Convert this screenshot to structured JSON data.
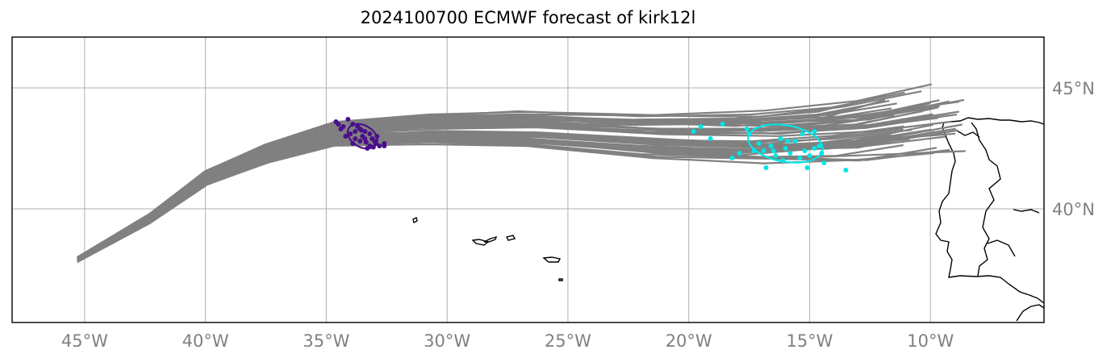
{
  "title": "2024100700 ECMWF forecast of kirk12l",
  "axes": {
    "lon_ticks": [
      {
        "lon": -45,
        "label": "45°W"
      },
      {
        "lon": -40,
        "label": "40°W"
      },
      {
        "lon": -35,
        "label": "35°W"
      },
      {
        "lon": -30,
        "label": "30°W"
      },
      {
        "lon": -25,
        "label": "25°W"
      },
      {
        "lon": -20,
        "label": "20°W"
      },
      {
        "lon": -15,
        "label": "15°W"
      },
      {
        "lon": -10,
        "label": "10°W"
      }
    ],
    "lat_ticks": [
      {
        "lat": 45,
        "label": "45°N"
      },
      {
        "lat": 40,
        "label": "40°N"
      }
    ],
    "lon_range": [
      -48,
      -5.3
    ],
    "lat_range": [
      35.3,
      47.1
    ],
    "grid": true
  },
  "colors": {
    "tracks": "#808080",
    "early_cluster": "#4b0f8c",
    "late_cluster": "#00e5e5",
    "coast": "#000000",
    "grid": "#b0b0b0"
  },
  "chart_data": {
    "type": "map",
    "track_bundle": {
      "start": [
        -45.3,
        37.9
      ],
      "anchors": [
        [
          -45.3,
          37.9
        ],
        [
          -42.3,
          39.6
        ],
        [
          -40.0,
          41.3
        ],
        [
          -37.5,
          42.3
        ],
        [
          -34.8,
          43.1
        ],
        [
          -31.0,
          43.3
        ],
        [
          -27.0,
          43.3
        ],
        [
          -22.0,
          43.0
        ],
        [
          -17.5,
          42.9
        ],
        [
          -14.0,
          43.1
        ],
        [
          -11.0,
          43.6
        ]
      ],
      "count": 50
    },
    "early_cluster": {
      "center": [
        -33.5,
        43.0
      ],
      "ellipse_radii_deg": [
        1.1,
        0.45
      ],
      "ellipse_rotation_deg": 30,
      "points": [
        [
          -34.6,
          43.6
        ],
        [
          -34.3,
          43.4
        ],
        [
          -34.1,
          43.7
        ],
        [
          -33.9,
          43.5
        ],
        [
          -33.8,
          43.2
        ],
        [
          -33.6,
          43.3
        ],
        [
          -33.5,
          43.0
        ],
        [
          -33.4,
          42.9
        ],
        [
          -33.2,
          43.1
        ],
        [
          -33.0,
          42.8
        ],
        [
          -32.8,
          42.6
        ],
        [
          -32.6,
          42.7
        ],
        [
          -33.3,
          42.5
        ],
        [
          -33.9,
          42.7
        ],
        [
          -34.0,
          43.1
        ],
        [
          -33.7,
          43.4
        ],
        [
          -33.4,
          43.2
        ],
        [
          -33.1,
          42.9
        ],
        [
          -32.9,
          43.0
        ],
        [
          -32.6,
          42.6
        ],
        [
          -33.6,
          42.8
        ],
        [
          -33.8,
          42.9
        ],
        [
          -34.4,
          43.3
        ],
        [
          -33.2,
          42.6
        ],
        [
          -32.95,
          42.7
        ],
        [
          -33.55,
          43.25
        ],
        [
          -34.2,
          43.0
        ],
        [
          -33.35,
          42.75
        ],
        [
          -33.05,
          42.55
        ],
        [
          -34.5,
          43.5
        ]
      ]
    },
    "late_cluster": {
      "center": [
        -16.0,
        42.7
      ],
      "ellipse_radii_deg": [
        2.6,
        0.75
      ],
      "ellipse_rotation_deg": 10,
      "points": [
        [
          -19.5,
          43.4
        ],
        [
          -19.1,
          42.9
        ],
        [
          -18.6,
          43.5
        ],
        [
          -17.9,
          42.3
        ],
        [
          -17.6,
          43.3
        ],
        [
          -17.1,
          42.7
        ],
        [
          -16.9,
          42.4
        ],
        [
          -16.6,
          42.6
        ],
        [
          -16.4,
          42.2
        ],
        [
          -16.2,
          42.9
        ],
        [
          -16.0,
          42.5
        ],
        [
          -15.8,
          42.3
        ],
        [
          -15.6,
          42.8
        ],
        [
          -15.4,
          42.1
        ],
        [
          -15.2,
          42.4
        ],
        [
          -15.0,
          42.2
        ],
        [
          -14.8,
          42.5
        ],
        [
          -14.6,
          42.6
        ],
        [
          -14.5,
          42.3
        ],
        [
          -15.1,
          41.7
        ],
        [
          -14.4,
          41.9
        ],
        [
          -13.5,
          41.6
        ],
        [
          -16.8,
          41.7
        ],
        [
          -17.3,
          42.4
        ],
        [
          -16.1,
          42.0
        ],
        [
          -15.3,
          43.1
        ],
        [
          -14.8,
          43.2
        ],
        [
          -17.5,
          43.1
        ],
        [
          -16.5,
          42.4
        ],
        [
          -15.9,
          42.8
        ],
        [
          -19.8,
          43.2
        ],
        [
          -18.2,
          42.1
        ]
      ]
    }
  }
}
